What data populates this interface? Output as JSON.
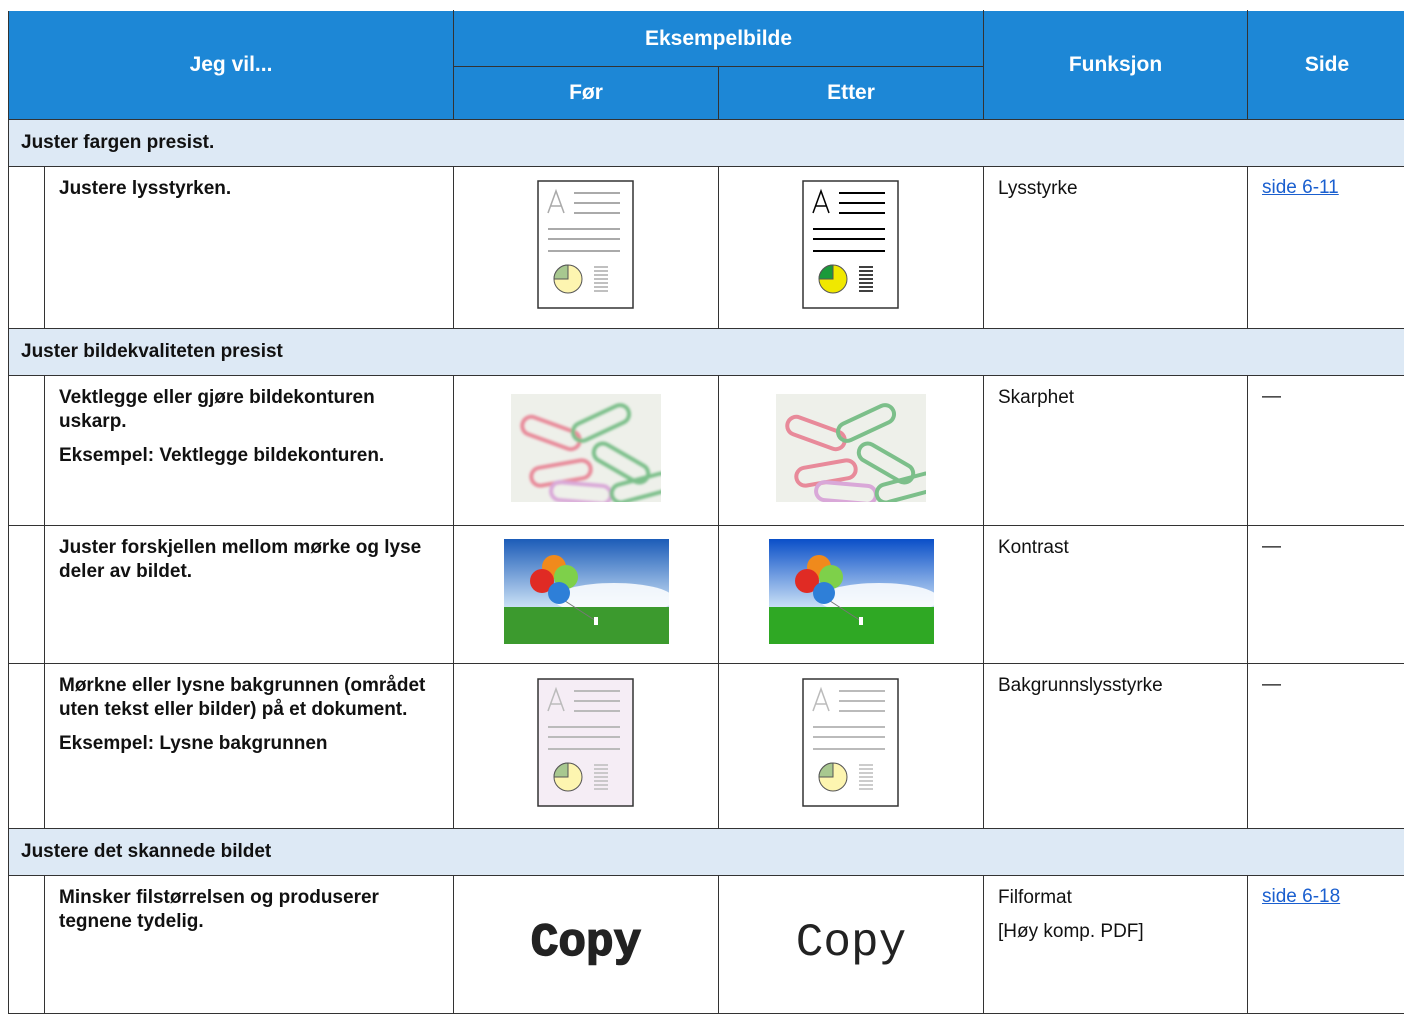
{
  "table": {
    "header": {
      "task": "Jeg vil...",
      "example": "Eksempelbilde",
      "before": "Før",
      "after": "Etter",
      "function": "Funksjon",
      "page": "Side"
    },
    "sections": [
      {
        "title": "Juster fargen presist.",
        "rows": [
          {
            "task": [
              "Justere lysstyrken."
            ],
            "function": [
              "Lysstyrke"
            ],
            "page": "side 6-11"
          }
        ]
      },
      {
        "title": "Juster bildekvaliteten presist",
        "rows": [
          {
            "task": [
              "Vektlegge eller gjøre bildekonturen uskarp.",
              "Eksempel: Vektlegge bildekonturen."
            ],
            "function": [
              "Skarphet"
            ],
            "page": "—"
          },
          {
            "task": [
              "Juster forskjellen mellom mørke og lyse deler av bildet."
            ],
            "function": [
              "Kontrast"
            ],
            "page": "—"
          },
          {
            "task": [
              "Mørkne eller lysne bakgrunnen (området uten tekst eller bilder) på et dokument.",
              "Eksempel: Lysne bakgrunnen"
            ],
            "function": [
              "Bakgrunnslysstyrke"
            ],
            "page": "—"
          }
        ]
      },
      {
        "title": "Justere det skannede bildet",
        "rows": [
          {
            "task": [
              "Minsker filstørrelsen og produserer tegnene tydelig."
            ],
            "function": [
              "Filformat",
              "[Høy komp. PDF]"
            ],
            "page": "side 6-18",
            "before_image_text": "Copy",
            "after_image_text": "Copy"
          }
        ]
      }
    ]
  }
}
